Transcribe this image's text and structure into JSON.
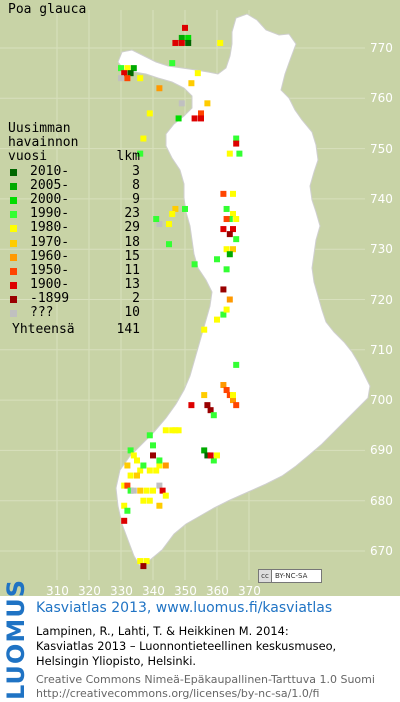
{
  "species": "Poa glauca",
  "legend": {
    "title_lines": [
      "Uusimman",
      "havainnon"
    ],
    "col_vuosi": "vuosi",
    "col_lkm": "lkm",
    "rows": [
      {
        "label": "2010-",
        "count": "3",
        "color": "#006600"
      },
      {
        "label": "2005-",
        "count": "8",
        "color": "#00aa00"
      },
      {
        "label": "2000-",
        "count": "9",
        "color": "#00dd00"
      },
      {
        "label": "1990-",
        "count": "23",
        "color": "#33ff33"
      },
      {
        "label": "1980-",
        "count": "29",
        "color": "#ffff00"
      },
      {
        "label": "1970-",
        "count": "18",
        "color": "#ffcc00"
      },
      {
        "label": "1960-",
        "count": "15",
        "color": "#ff9900"
      },
      {
        "label": "1950-",
        "count": "11",
        "color": "#ff4400"
      },
      {
        "label": "1900-",
        "count": "13",
        "color": "#dd0000"
      },
      {
        "label": "-1899",
        "count": "2",
        "color": "#990000"
      },
      {
        "label": "???",
        "count": "10",
        "color": "#c0c0c0"
      }
    ],
    "total_label": "Yhteensä",
    "total_count": "141"
  },
  "axes": {
    "x": [
      "310",
      "320",
      "330",
      "340",
      "350",
      "360",
      "370"
    ],
    "y": [
      "770",
      "760",
      "750",
      "740",
      "730",
      "720",
      "710",
      "700",
      "690",
      "680",
      "670"
    ]
  },
  "license_badge": {
    "icon": "cc-icon",
    "text": "BY-NC-SA"
  },
  "footer": {
    "logo": "LUOMUS",
    "title": "Kasviatlas 2013, www.luomus.fi/kasviatlas",
    "citation": [
      "Lampinen, R., Lahti, T. & Heikkinen M. 2014:",
      "Kasviatlas 2013 – Luonnontieteellinen keskusmuseo,",
      "Helsingin Yliopisto, Helsinki."
    ],
    "license": [
      "Creative Commons Nimeä-Epäkaupallinen-Tarttuva 1.0 Suomi",
      "http://creativecommons.org/licenses/by-nc-sa/1.0/fi"
    ]
  },
  "observations": [
    {
      "e": 330,
      "n": 766,
      "c": 3
    },
    {
      "e": 332,
      "n": 766,
      "c": 4
    },
    {
      "e": 334,
      "n": 766,
      "c": 1
    },
    {
      "e": 331,
      "n": 765,
      "c": 8
    },
    {
      "e": 333,
      "n": 765,
      "c": 0
    },
    {
      "e": 332,
      "n": 764,
      "c": 7
    },
    {
      "e": 330,
      "n": 764,
      "c": 10
    },
    {
      "e": 336,
      "n": 764,
      "c": 4
    },
    {
      "e": 350,
      "n": 774,
      "c": 8
    },
    {
      "e": 349,
      "n": 772,
      "c": 1
    },
    {
      "e": 351,
      "n": 772,
      "c": 2
    },
    {
      "e": 349,
      "n": 771,
      "c": 8
    },
    {
      "e": 351,
      "n": 771,
      "c": 0
    },
    {
      "e": 347,
      "n": 771,
      "c": 8
    },
    {
      "e": 361,
      "n": 771,
      "c": 4
    },
    {
      "e": 346,
      "n": 767,
      "c": 3
    },
    {
      "e": 354,
      "n": 765,
      "c": 4
    },
    {
      "e": 352,
      "n": 763,
      "c": 5
    },
    {
      "e": 342,
      "n": 762,
      "c": 6
    },
    {
      "e": 349,
      "n": 759,
      "c": 10
    },
    {
      "e": 357,
      "n": 759,
      "c": 5
    },
    {
      "e": 355,
      "n": 757,
      "c": 7
    },
    {
      "e": 355,
      "n": 756,
      "c": 8
    },
    {
      "e": 353,
      "n": 756,
      "c": 8
    },
    {
      "e": 348,
      "n": 756,
      "c": 2
    },
    {
      "e": 339,
      "n": 757,
      "c": 4
    },
    {
      "e": 366,
      "n": 752,
      "c": 3
    },
    {
      "e": 366,
      "n": 751,
      "c": 8
    },
    {
      "e": 367,
      "n": 749,
      "c": 3
    },
    {
      "e": 364,
      "n": 749,
      "c": 4
    },
    {
      "e": 336,
      "n": 749,
      "c": 3
    },
    {
      "e": 337,
      "n": 752,
      "c": 4
    },
    {
      "e": 362,
      "n": 741,
      "c": 7
    },
    {
      "e": 365,
      "n": 741,
      "c": 4
    },
    {
      "e": 363,
      "n": 738,
      "c": 3
    },
    {
      "e": 365,
      "n": 737,
      "c": 4
    },
    {
      "e": 364,
      "n": 736,
      "c": 3
    },
    {
      "e": 363,
      "n": 736,
      "c": 7
    },
    {
      "e": 366,
      "n": 736,
      "c": 4
    },
    {
      "e": 362,
      "n": 734,
      "c": 8
    },
    {
      "e": 365,
      "n": 734,
      "c": 8
    },
    {
      "e": 364,
      "n": 733,
      "c": 9
    },
    {
      "e": 366,
      "n": 732,
      "c": 3
    },
    {
      "e": 363,
      "n": 730,
      "c": 4
    },
    {
      "e": 365,
      "n": 730,
      "c": 5
    },
    {
      "e": 364,
      "n": 729,
      "c": 1
    },
    {
      "e": 350,
      "n": 738,
      "c": 3
    },
    {
      "e": 347,
      "n": 738,
      "c": 5
    },
    {
      "e": 346,
      "n": 737,
      "c": 4
    },
    {
      "e": 345,
      "n": 735,
      "c": 4
    },
    {
      "e": 342,
      "n": 735,
      "c": 10
    },
    {
      "e": 341,
      "n": 736,
      "c": 3
    },
    {
      "e": 345,
      "n": 731,
      "c": 3
    },
    {
      "e": 360,
      "n": 728,
      "c": 3
    },
    {
      "e": 363,
      "n": 726,
      "c": 3
    },
    {
      "e": 353,
      "n": 727,
      "c": 3
    },
    {
      "e": 362,
      "n": 722,
      "c": 9
    },
    {
      "e": 364,
      "n": 720,
      "c": 6
    },
    {
      "e": 362,
      "n": 717,
      "c": 3
    },
    {
      "e": 363,
      "n": 718,
      "c": 4
    },
    {
      "e": 360,
      "n": 716,
      "c": 4
    },
    {
      "e": 356,
      "n": 714,
      "c": 4
    },
    {
      "e": 366,
      "n": 707,
      "c": 3
    },
    {
      "e": 362,
      "n": 703,
      "c": 6
    },
    {
      "e": 363,
      "n": 702,
      "c": 7
    },
    {
      "e": 364,
      "n": 701,
      "c": 7
    },
    {
      "e": 365,
      "n": 700,
      "c": 6
    },
    {
      "e": 366,
      "n": 699,
      "c": 7
    },
    {
      "e": 356,
      "n": 701,
      "c": 5
    },
    {
      "e": 357,
      "n": 699,
      "c": 9
    },
    {
      "e": 358,
      "n": 698,
      "c": 9
    },
    {
      "e": 359,
      "n": 697,
      "c": 3
    },
    {
      "e": 352,
      "n": 699,
      "c": 8
    },
    {
      "e": 356,
      "n": 690,
      "c": 1
    },
    {
      "e": 357,
      "n": 689,
      "c": 0
    },
    {
      "e": 359,
      "n": 688,
      "c": 3
    },
    {
      "e": 358,
      "n": 689,
      "c": 8
    },
    {
      "e": 360,
      "n": 689,
      "c": 4
    },
    {
      "e": 344,
      "n": 694,
      "c": 4
    },
    {
      "e": 346,
      "n": 694,
      "c": 4
    },
    {
      "e": 347,
      "n": 694,
      "c": 4
    },
    {
      "e": 348,
      "n": 694,
      "c": 4
    },
    {
      "e": 339,
      "n": 693,
      "c": 3
    },
    {
      "e": 340,
      "n": 691,
      "c": 3
    },
    {
      "e": 333,
      "n": 690,
      "c": 3
    },
    {
      "e": 334,
      "n": 689,
      "c": 4
    },
    {
      "e": 332,
      "n": 687,
      "c": 5
    },
    {
      "e": 335,
      "n": 688,
      "c": 4
    },
    {
      "e": 336,
      "n": 686,
      "c": 4
    },
    {
      "e": 333,
      "n": 685,
      "c": 4
    },
    {
      "e": 335,
      "n": 685,
      "c": 5
    },
    {
      "e": 337,
      "n": 687,
      "c": 3
    },
    {
      "e": 339,
      "n": 686,
      "c": 4
    },
    {
      "e": 341,
      "n": 686,
      "c": 4
    },
    {
      "e": 342,
      "n": 687,
      "c": 4
    },
    {
      "e": 344,
      "n": 687,
      "c": 6
    },
    {
      "e": 342,
      "n": 688,
      "c": 3
    },
    {
      "e": 331,
      "n": 683,
      "c": 4
    },
    {
      "e": 332,
      "n": 683,
      "c": 7
    },
    {
      "e": 333,
      "n": 682,
      "c": 3
    },
    {
      "e": 334,
      "n": 682,
      "c": 10
    },
    {
      "e": 336,
      "n": 682,
      "c": 5
    },
    {
      "e": 338,
      "n": 682,
      "c": 4
    },
    {
      "e": 340,
      "n": 682,
      "c": 4
    },
    {
      "e": 342,
      "n": 683,
      "c": 10
    },
    {
      "e": 343,
      "n": 682,
      "c": 8
    },
    {
      "e": 344,
      "n": 681,
      "c": 4
    },
    {
      "e": 337,
      "n": 680,
      "c": 4
    },
    {
      "e": 339,
      "n": 680,
      "c": 4
    },
    {
      "e": 342,
      "n": 679,
      "c": 5
    },
    {
      "e": 331,
      "n": 679,
      "c": 4
    },
    {
      "e": 332,
      "n": 678,
      "c": 3
    },
    {
      "e": 331,
      "n": 676,
      "c": 8
    },
    {
      "e": 336,
      "n": 668,
      "c": 4
    },
    {
      "e": 338,
      "n": 668,
      "c": 4
    },
    {
      "e": 337,
      "n": 667,
      "c": 9
    },
    {
      "e": 340,
      "n": 689,
      "c": 9
    },
    {
      "e": 365,
      "n": 701,
      "c": 4
    }
  ]
}
